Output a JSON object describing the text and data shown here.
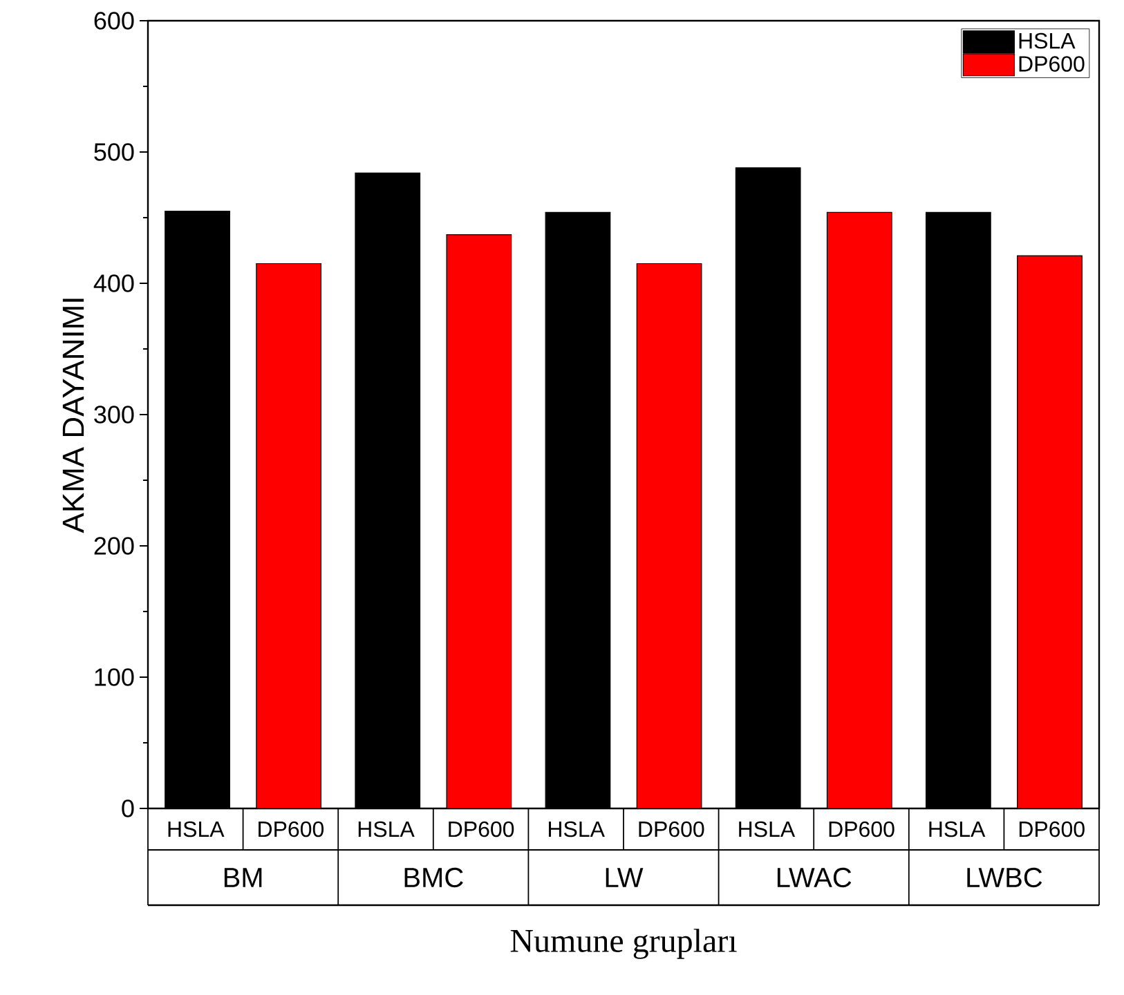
{
  "chart_data": {
    "type": "bar",
    "xlabel": "Numune grupları",
    "ylabel": "AKMA DAYANIMI",
    "categories": [
      "BM",
      "BMC",
      "LW",
      "LWAC",
      "LWBC"
    ],
    "series": [
      {
        "name": "HSLA",
        "color": "#000000",
        "values": [
          455,
          484,
          454,
          488,
          454
        ]
      },
      {
        "name": "DP600",
        "color": "#ff0000",
        "values": [
          415,
          437,
          415,
          454,
          421
        ]
      }
    ],
    "annotations": [
      "HSLA",
      "DP600",
      "HSLA",
      "DP600",
      "HSLA",
      "DP600",
      "HSLA",
      "DP600",
      "HSLA",
      "DP600"
    ],
    "ylim": [
      0,
      600
    ],
    "yticks": [
      0,
      100,
      200,
      300,
      400,
      500,
      600
    ],
    "grid": false,
    "legend": "top right"
  }
}
